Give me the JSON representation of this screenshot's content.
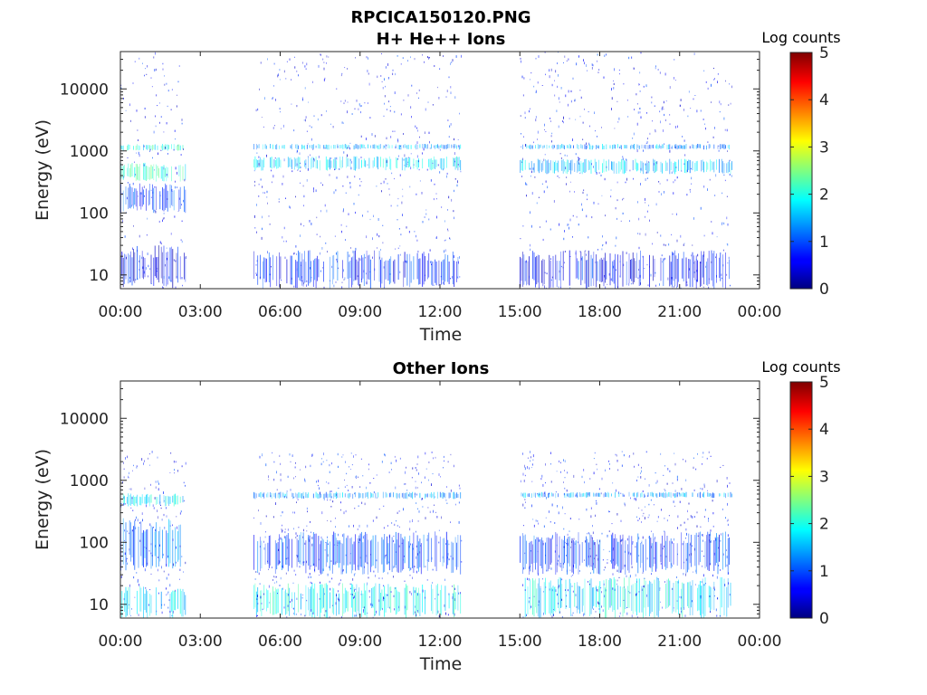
{
  "figure": {
    "filename": "RPCICA150120.PNG"
  },
  "colorbar": {
    "label": "Log counts",
    "ticks": [
      "0",
      "1",
      "2",
      "3",
      "4",
      "5"
    ]
  },
  "chart_data": [
    {
      "type": "heatmap",
      "title": "H+ He++ Ions",
      "xlabel": "Time",
      "ylabel": "Energy (eV)",
      "xticks": [
        "00:00",
        "03:00",
        "06:00",
        "09:00",
        "12:00",
        "15:00",
        "18:00",
        "21:00",
        "00:00"
      ],
      "xlim_hours": [
        0,
        24
      ],
      "yscale": "log",
      "yticks": [
        "10",
        "100",
        "1000",
        "10000"
      ],
      "ylim_eV": [
        6,
        40000
      ],
      "colorbar_range": [
        0,
        5
      ],
      "data_intervals_hours": [
        [
          0.0,
          2.45
        ],
        [
          5.0,
          12.8
        ],
        [
          15.0,
          22.95
        ]
      ],
      "bands": [
        {
          "interval": 0,
          "e_lo": 1000,
          "e_hi": 1300,
          "level": 2.0
        },
        {
          "interval": 0,
          "e_lo": 320,
          "e_hi": 650,
          "level": 2.1
        },
        {
          "interval": 0,
          "e_lo": 100,
          "e_hi": 300,
          "level": 0.9
        },
        {
          "interval": 0,
          "e_lo": 6,
          "e_hi": 30,
          "level": 0.6
        },
        {
          "interval": 1,
          "e_lo": 1050,
          "e_hi": 1300,
          "level": 1.5
        },
        {
          "interval": 1,
          "e_lo": 480,
          "e_hi": 820,
          "level": 1.7
        },
        {
          "interval": 1,
          "e_lo": 6,
          "e_hi": 25,
          "level": 0.8
        },
        {
          "interval": 2,
          "e_lo": 1050,
          "e_hi": 1300,
          "level": 1.4
        },
        {
          "interval": 2,
          "e_lo": 420,
          "e_hi": 750,
          "level": 1.6
        },
        {
          "interval": 2,
          "e_lo": 6,
          "e_hi": 25,
          "level": 0.7
        }
      ]
    },
    {
      "type": "heatmap",
      "title": "Other Ions",
      "xlabel": "Time",
      "ylabel": "Energy (eV)",
      "xticks": [
        "00:00",
        "03:00",
        "06:00",
        "09:00",
        "12:00",
        "15:00",
        "18:00",
        "21:00",
        "00:00"
      ],
      "xlim_hours": [
        0,
        24
      ],
      "yscale": "log",
      "yticks": [
        "10",
        "100",
        "1000",
        "10000"
      ],
      "ylim_eV": [
        6,
        40000
      ],
      "colorbar_range": [
        0,
        5
      ],
      "data_intervals_hours": [
        [
          0.0,
          2.45
        ],
        [
          5.0,
          12.8
        ],
        [
          15.0,
          22.95
        ]
      ],
      "bands": [
        {
          "interval": 0,
          "e_lo": 380,
          "e_hi": 620,
          "level": 1.8
        },
        {
          "interval": 0,
          "e_lo": 35,
          "e_hi": 250,
          "level": 1.2
        },
        {
          "interval": 0,
          "e_lo": 6,
          "e_hi": 20,
          "level": 1.8
        },
        {
          "interval": 1,
          "e_lo": 500,
          "e_hi": 650,
          "level": 1.4
        },
        {
          "interval": 1,
          "e_lo": 30,
          "e_hi": 150,
          "level": 1.0
        },
        {
          "interval": 1,
          "e_lo": 6,
          "e_hi": 22,
          "level": 1.9
        },
        {
          "interval": 2,
          "e_lo": 520,
          "e_hi": 650,
          "level": 1.4
        },
        {
          "interval": 2,
          "e_lo": 30,
          "e_hi": 150,
          "level": 0.9
        },
        {
          "interval": 2,
          "e_lo": 6,
          "e_hi": 28,
          "level": 1.8
        }
      ]
    }
  ]
}
